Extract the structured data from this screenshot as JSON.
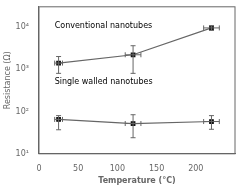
{
  "chart_data": {
    "type": "line",
    "xlabel": "Temperature (°C)",
    "ylabel": "Resistance (Ω)",
    "annotations": [
      "Conventional nanotubes",
      "Single walled nanotubes"
    ],
    "log": "y",
    "grid": false,
    "marker": "square",
    "xlim": [
      0,
      250
    ],
    "xticks": [
      0,
      50,
      100,
      150,
      200
    ],
    "ylim": [
      10,
      30000
    ],
    "yticks": [
      {
        "value": 10,
        "label": "10¹"
      },
      {
        "value": 100,
        "label": "10²"
      },
      {
        "value": 1000,
        "label": "10³"
      },
      {
        "value": 10000,
        "label": "10⁴"
      }
    ],
    "x": [
      25,
      120,
      220
    ],
    "series": [
      {
        "color": "#666666",
        "colors": [
          "#111111",
          "#111111",
          "#111111"
        ],
        "values": [
          1400,
          2200,
          9500
        ],
        "yerr_lo": [
          600,
          1400,
          1200
        ],
        "yerr_hi": [
          600,
          1400,
          1200
        ],
        "xerr": [
          5,
          10,
          10
        ]
      },
      {
        "color": "#666666",
        "colors": [
          "#111111",
          "#111111",
          "#111111"
        ],
        "values": [
          65,
          52,
          58
        ],
        "yerr_lo": [
          28,
          28,
          20
        ],
        "yerr_hi": [
          15,
          32,
          22
        ],
        "xerr": [
          5,
          10,
          10
        ]
      }
    ]
  }
}
